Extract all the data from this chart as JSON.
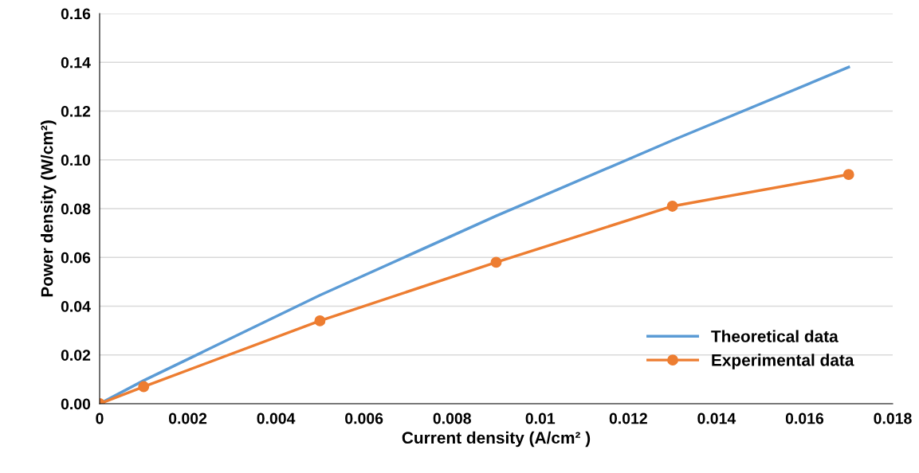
{
  "chart_data": {
    "type": "line",
    "xlabel": "Current density (A/cm² )",
    "ylabel": "Power density (W/cm²)",
    "series": [
      {
        "name": "Theoretical data",
        "color": "#5b9bd5",
        "marker": "none",
        "x": [
          0,
          0.001,
          0.005,
          0.009,
          0.013,
          0.017
        ],
        "values": [
          0,
          0.0095,
          0.0445,
          0.077,
          0.108,
          0.138
        ]
      },
      {
        "name": "Experimental data",
        "color": "#ed7d31",
        "marker": "circle",
        "x": [
          0,
          0.001,
          0.005,
          0.009,
          0.013,
          0.017
        ],
        "values": [
          0,
          0.007,
          0.034,
          0.058,
          0.081,
          0.094
        ]
      }
    ],
    "xlim": [
      0,
      0.018
    ],
    "xticks": [
      0,
      0.002,
      0.004,
      0.006,
      0.008,
      0.01,
      0.012,
      0.014,
      0.016,
      0.018
    ],
    "ylim": [
      0,
      0.16
    ],
    "yticks": [
      {
        "value": 0,
        "label": "0.00"
      },
      {
        "value": 0.02,
        "label": "0.02"
      },
      {
        "value": 0.04,
        "label": "0.04"
      },
      {
        "value": 0.06,
        "label": "0.06"
      },
      {
        "value": 0.08,
        "label": "0.08"
      },
      {
        "value": 0.1,
        "label": "0.10"
      },
      {
        "value": 0.12,
        "label": "0.12"
      },
      {
        "value": 0.14,
        "label": "0.14"
      },
      {
        "value": 0.16,
        "label": "0.16"
      }
    ],
    "grid": "y",
    "legend": "bottom right",
    "line_style": "solid"
  }
}
